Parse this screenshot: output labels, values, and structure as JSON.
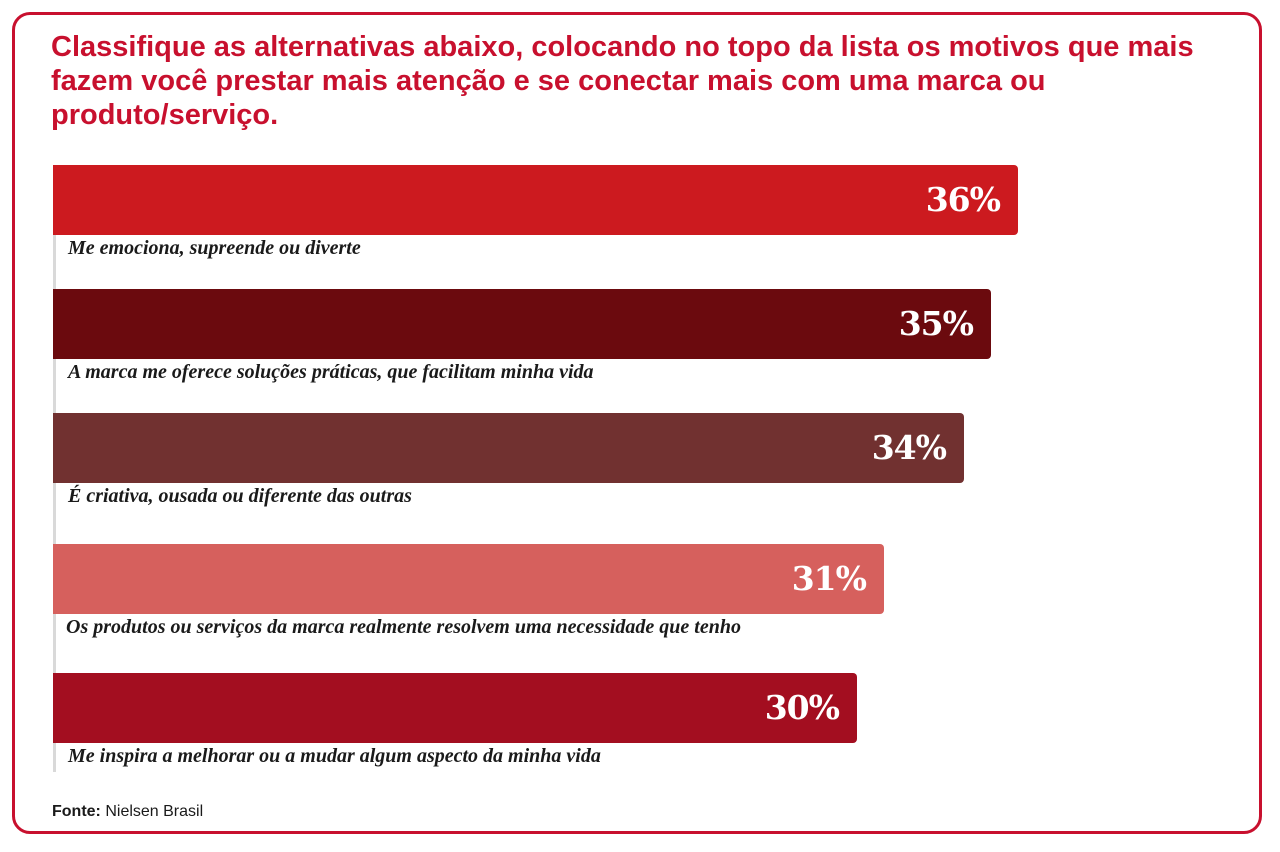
{
  "title": "Classifique as alternativas abaixo, colocando no topo da lista os motivos que mais fazem você prestar mais atenção e se conectar mais com uma marca ou produto/serviço.",
  "source": {
    "label": "Fonte:",
    "text": "Nielsen Brasil"
  },
  "chart_data": {
    "type": "bar",
    "orientation": "horizontal",
    "title": "Classifique as alternativas abaixo, colocando no topo da lista os motivos que mais fazem você prestar mais atenção e se conectar mais com uma marca ou produto/serviço.",
    "categories": [
      "Me emociona, supreende ou diverte",
      "A marca me oferece soluções práticas, que facilitam minha vida",
      "É criativa, ousada ou diferente das outras",
      "Os produtos ou serviços da marca realmente resolvem uma necessidade que tenho",
      "Me inspira a melhorar ou a mudar algum aspecto da minha vida"
    ],
    "values": [
      36,
      35,
      34,
      31,
      30
    ],
    "value_labels": [
      "36%",
      "35%",
      "34%",
      "31%",
      "30%"
    ],
    "unit": "%",
    "colors": [
      "#cc1a1f",
      "#6b0a0e",
      "#713130",
      "#d6605d",
      "#a30e20"
    ],
    "xlabel": "",
    "ylabel": "",
    "grid": false,
    "legend": "none"
  }
}
